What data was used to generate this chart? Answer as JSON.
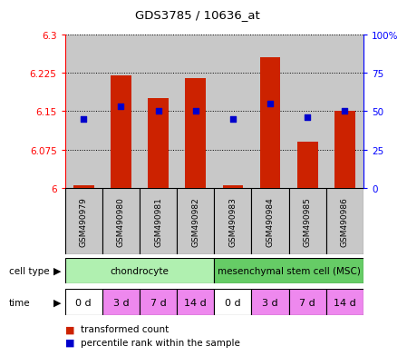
{
  "title": "GDS3785 / 10636_at",
  "samples": [
    "GSM490979",
    "GSM490980",
    "GSM490981",
    "GSM490982",
    "GSM490983",
    "GSM490984",
    "GSM490985",
    "GSM490986"
  ],
  "transformed_count": [
    6.005,
    6.22,
    6.175,
    6.215,
    6.005,
    6.255,
    6.09,
    6.15
  ],
  "percentile_rank": [
    45,
    53,
    50,
    50,
    45,
    55,
    46,
    50
  ],
  "ylim_left": [
    6.0,
    6.3
  ],
  "ylim_right": [
    0,
    100
  ],
  "yticks_left": [
    6.0,
    6.075,
    6.15,
    6.225,
    6.3
  ],
  "yticks_right": [
    0,
    25,
    50,
    75,
    100
  ],
  "ytick_labels_left": [
    "6",
    "6.075",
    "6.15",
    "6.225",
    "6.3"
  ],
  "ytick_labels_right": [
    "0",
    "25",
    "50",
    "75",
    "100%"
  ],
  "cell_type_labels": [
    "chondrocyte",
    "mesenchymal stem cell (MSC)"
  ],
  "cell_type_colors": [
    "#b0f0b0",
    "#66cc66"
  ],
  "cell_type_ranges": [
    [
      0,
      4
    ],
    [
      4,
      8
    ]
  ],
  "time_labels": [
    "0 d",
    "3 d",
    "7 d",
    "14 d",
    "0 d",
    "3 d",
    "7 d",
    "14 d"
  ],
  "time_colors": [
    "#ffffff",
    "#ee88ee",
    "#ee88ee",
    "#ee88ee",
    "#ffffff",
    "#ee88ee",
    "#ee88ee",
    "#ee88ee"
  ],
  "bar_color": "#cc2200",
  "dot_color": "#0000cc",
  "bar_width": 0.55,
  "dot_size": 25,
  "panel_bg": "#c8c8c8",
  "legend_red_label": "transformed count",
  "legend_blue_label": "percentile rank within the sample"
}
